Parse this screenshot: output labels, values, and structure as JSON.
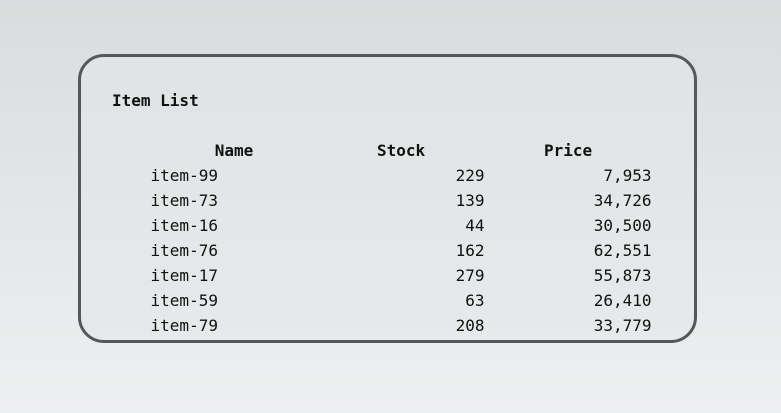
{
  "listing": {
    "title": "Item List",
    "columns": [
      "Name",
      "Stock",
      "Price"
    ],
    "rows": [
      {
        "name": "item-99",
        "stock": "229",
        "price": "7,953"
      },
      {
        "name": "item-73",
        "stock": "139",
        "price": "34,726"
      },
      {
        "name": "item-16",
        "stock": "44",
        "price": "30,500"
      },
      {
        "name": "item-76",
        "stock": "162",
        "price": "62,551"
      },
      {
        "name": "item-17",
        "stock": "279",
        "price": "55,873"
      },
      {
        "name": "item-59",
        "stock": "63",
        "price": "26,410"
      },
      {
        "name": "item-79",
        "stock": "208",
        "price": "33,779"
      }
    ]
  }
}
